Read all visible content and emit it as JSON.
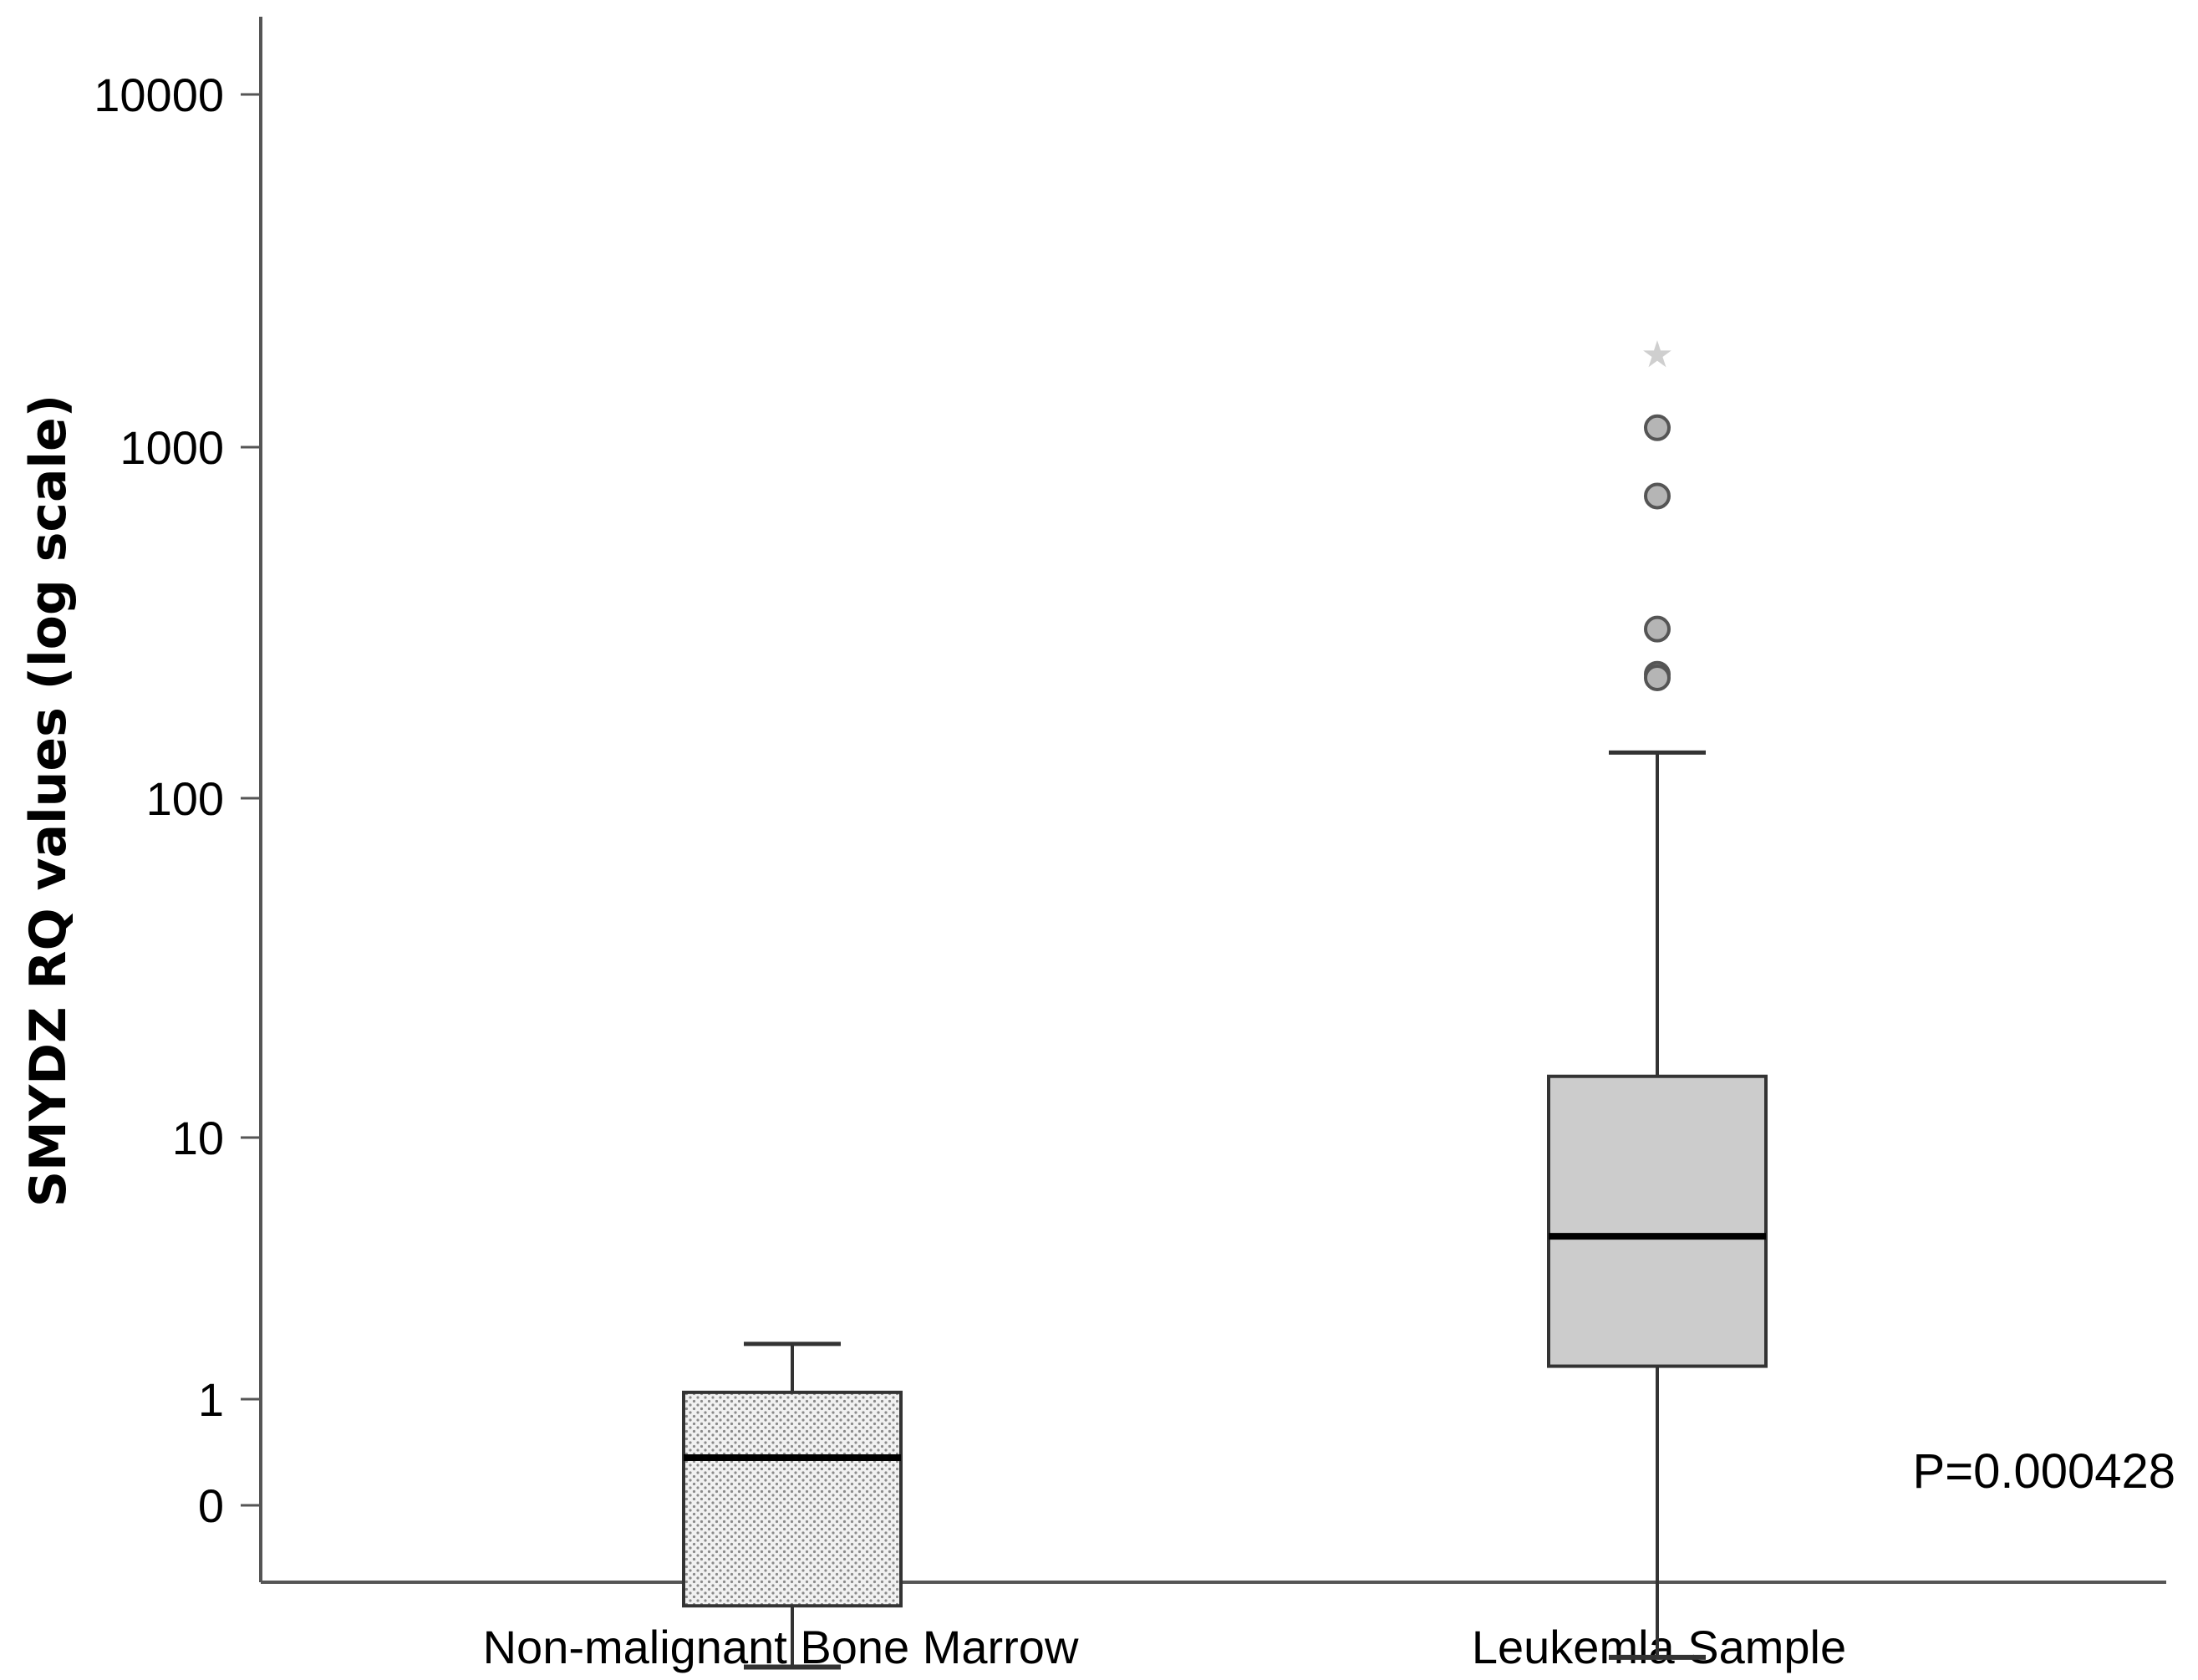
{
  "chart_data": {
    "type": "box",
    "ylabel": "SMYDZ RQ values (log scale)",
    "xlabel": "",
    "yscale": "log",
    "y_tick_labels": [
      "10000",
      "1000",
      "100",
      "10",
      "1",
      "0"
    ],
    "categories": [
      "Non-malignant Bone Marrow",
      "Leukemla Sample"
    ],
    "boxes": [
      {
        "category": "Non-malignant Bone Marrow",
        "fill": "dotted-gray",
        "whisker_low": 0.3,
        "q1": 0.45,
        "median": 1.2,
        "q3": 1.85,
        "whisker_high": 2.55,
        "outliers": [],
        "extremes": []
      },
      {
        "category": "Leukemla Sample",
        "fill": "#cccccc",
        "whisker_low": 0.32,
        "q1": 2.2,
        "median": 5.2,
        "q3": 15,
        "whisker_high": 128,
        "outliers": [
          1100,
          700,
          290,
          215,
          210
        ],
        "extremes": [
          1800
        ]
      }
    ],
    "annotation": "P=0.000428",
    "grid": false,
    "legend": "none"
  }
}
